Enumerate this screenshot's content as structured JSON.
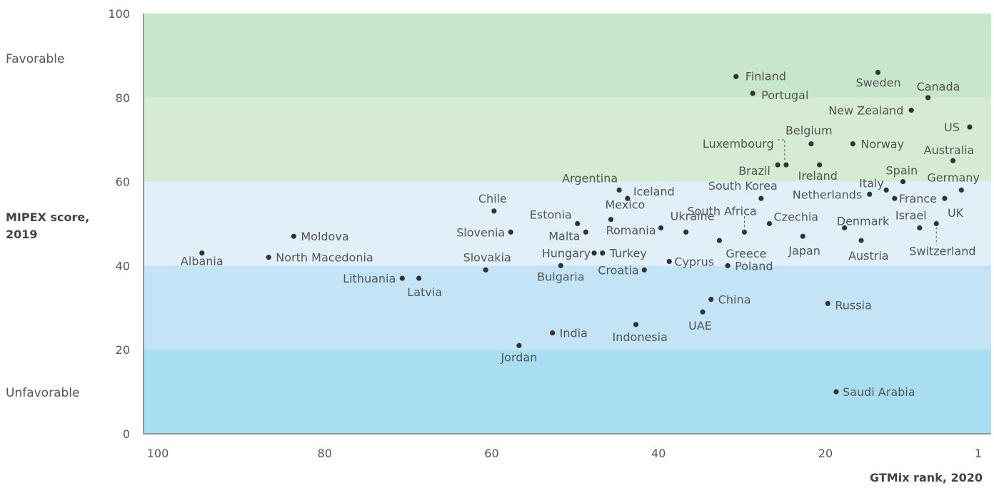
{
  "chart_data": {
    "type": "scatter",
    "ylabel": [
      "MIPEX score,",
      "2019"
    ],
    "xlabel": "GTMix rank, 2020",
    "xlim": [
      100,
      1
    ],
    "ylim": [
      0,
      100
    ],
    "x_ticks": [
      100,
      80,
      60,
      40,
      20,
      1
    ],
    "y_ticks": [
      0,
      20,
      40,
      60,
      80,
      100
    ],
    "side_labels": {
      "top": "Favorable",
      "bottom": "Unfavorable"
    },
    "bands": [
      {
        "from": 0,
        "to": 20,
        "color": "#a8ddf2"
      },
      {
        "from": 20,
        "to": 40,
        "color": "#c2e4f6"
      },
      {
        "from": 40,
        "to": 60,
        "color": "#e1eff9"
      },
      {
        "from": 60,
        "to": 80,
        "color": "#d5ebd3"
      },
      {
        "from": 80,
        "to": 100,
        "color": "#c7e6cb"
      }
    ],
    "point_color": "#333333",
    "points": [
      {
        "name": "Albania",
        "x": 93,
        "y": 43
      },
      {
        "name": "North Macedonia",
        "x": 85,
        "y": 42
      },
      {
        "name": "Moldova",
        "x": 82,
        "y": 47
      },
      {
        "name": "Lithuania",
        "x": 69,
        "y": 37
      },
      {
        "name": "Latvia",
        "x": 67,
        "y": 37
      },
      {
        "name": "Slovakia",
        "x": 59,
        "y": 39
      },
      {
        "name": "Chile",
        "x": 58,
        "y": 53
      },
      {
        "name": "Slovenia",
        "x": 56,
        "y": 48
      },
      {
        "name": "Jordan",
        "x": 55,
        "y": 21
      },
      {
        "name": "India",
        "x": 51,
        "y": 24
      },
      {
        "name": "Bulgaria",
        "x": 50,
        "y": 40
      },
      {
        "name": "Estonia",
        "x": 48,
        "y": 50
      },
      {
        "name": "Malta",
        "x": 47,
        "y": 48
      },
      {
        "name": "Hungary",
        "x": 46,
        "y": 43
      },
      {
        "name": "Turkey",
        "x": 45,
        "y": 43
      },
      {
        "name": "Mexico",
        "x": 44,
        "y": 51
      },
      {
        "name": "Argentina",
        "x": 43,
        "y": 58
      },
      {
        "name": "Iceland",
        "x": 42,
        "y": 56
      },
      {
        "name": "Indonesia",
        "x": 41,
        "y": 26
      },
      {
        "name": "Croatia",
        "x": 40,
        "y": 39
      },
      {
        "name": "Romania",
        "x": 38,
        "y": 49
      },
      {
        "name": "Cyprus",
        "x": 37,
        "y": 41
      },
      {
        "name": "Ukraine",
        "x": 35,
        "y": 48
      },
      {
        "name": "UAE",
        "x": 33,
        "y": 29
      },
      {
        "name": "China",
        "x": 32,
        "y": 32
      },
      {
        "name": "Greece",
        "x": 31,
        "y": 46
      },
      {
        "name": "Poland",
        "x": 30,
        "y": 40
      },
      {
        "name": "Finland",
        "x": 29,
        "y": 85
      },
      {
        "name": "South Africa",
        "x": 28,
        "y": 48
      },
      {
        "name": "Portugal",
        "x": 27,
        "y": 81
      },
      {
        "name": "South Korea",
        "x": 26,
        "y": 56
      },
      {
        "name": "Czechia",
        "x": 25,
        "y": 50
      },
      {
        "name": "Brazil",
        "x": 24,
        "y": 64
      },
      {
        "name": "Luxembourg",
        "x": 23,
        "y": 64
      },
      {
        "name": "Japan",
        "x": 21,
        "y": 47
      },
      {
        "name": "Belgium",
        "x": 20,
        "y": 69
      },
      {
        "name": "Ireland",
        "x": 19,
        "y": 64
      },
      {
        "name": "Russia",
        "x": 18,
        "y": 31
      },
      {
        "name": "Saudi Arabia",
        "x": 17,
        "y": 10
      },
      {
        "name": "Denmark",
        "x": 16,
        "y": 49
      },
      {
        "name": "Norway",
        "x": 15,
        "y": 69
      },
      {
        "name": "Austria",
        "x": 14,
        "y": 46
      },
      {
        "name": "Netherlands",
        "x": 13,
        "y": 57
      },
      {
        "name": "Sweden",
        "x": 12,
        "y": 86
      },
      {
        "name": "Italy",
        "x": 11,
        "y": 58
      },
      {
        "name": "France",
        "x": 10,
        "y": 56
      },
      {
        "name": "Spain",
        "x": 9,
        "y": 60
      },
      {
        "name": "New Zealand",
        "x": 8,
        "y": 77
      },
      {
        "name": "Israel",
        "x": 7,
        "y": 49
      },
      {
        "name": "Canada",
        "x": 6,
        "y": 80
      },
      {
        "name": "Switzerland",
        "x": 5,
        "y": 50
      },
      {
        "name": "UK",
        "x": 4,
        "y": 56
      },
      {
        "name": "Australia",
        "x": 3,
        "y": 65
      },
      {
        "name": "Germany",
        "x": 2,
        "y": 58
      },
      {
        "name": "US",
        "x": 1,
        "y": 73
      }
    ]
  }
}
